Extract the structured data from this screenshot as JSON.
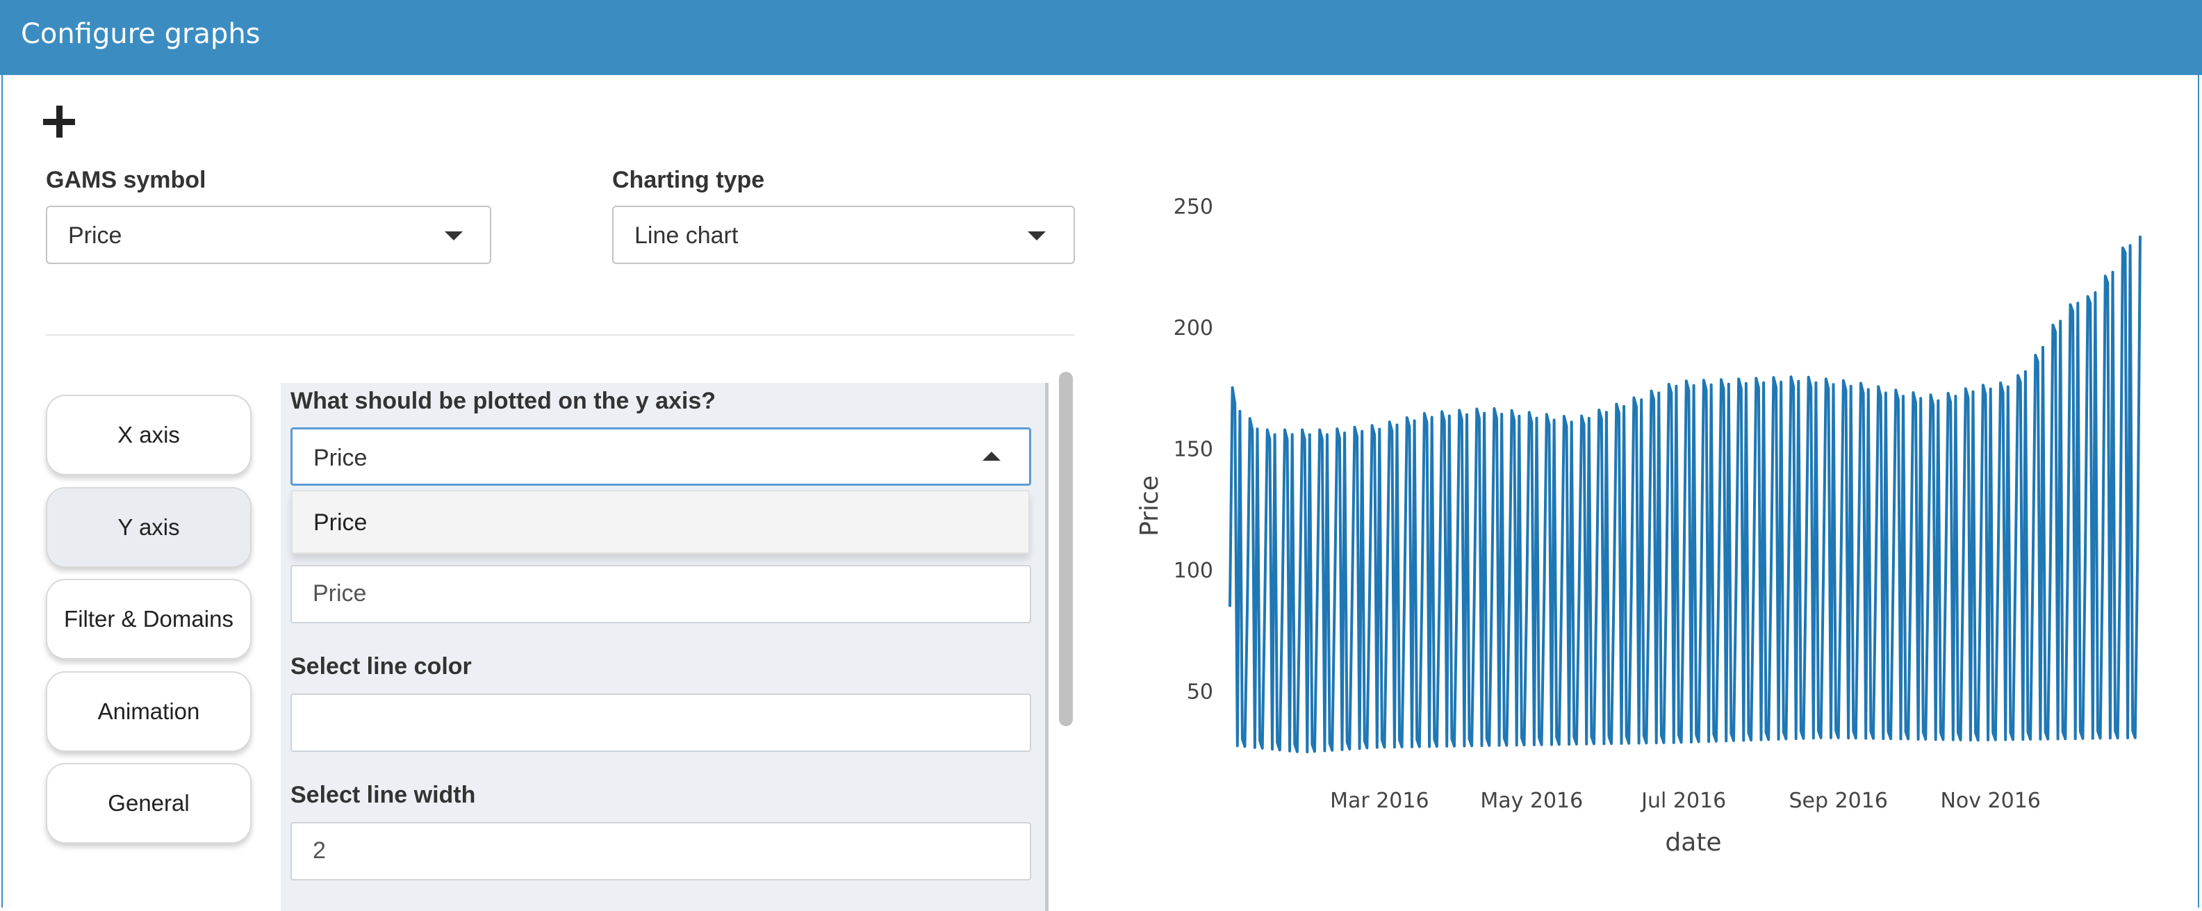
{
  "header": {
    "title": "Configure graphs"
  },
  "add_icon": "plus-icon",
  "symbol_field": {
    "label": "GAMS symbol",
    "value": "Price"
  },
  "charttype_field": {
    "label": "Charting type",
    "value": "Line chart"
  },
  "tabs": [
    {
      "label": "X axis",
      "active": false
    },
    {
      "label": "Y axis",
      "active": true
    },
    {
      "label": "Filter & Domains",
      "active": false
    },
    {
      "label": "Animation",
      "active": false
    },
    {
      "label": "General",
      "active": false
    }
  ],
  "yaxis_panel": {
    "question": "What should be plotted on the y axis?",
    "selected": "Price",
    "options": [
      "Price"
    ],
    "series_label_value": "Price",
    "line_color_label": "Select line color",
    "line_color_value": "",
    "line_width_label": "Select line width",
    "line_width_value": "2"
  },
  "chart_data": {
    "type": "line",
    "xlabel": "date",
    "ylabel": "Price",
    "x_range": [
      "2016-01-01",
      "2016-12-31"
    ],
    "ylim": [
      20,
      255
    ],
    "y_ticks": [
      50,
      100,
      150,
      200,
      250
    ],
    "x_ticks": [
      "Mar 2016",
      "May 2016",
      "Jul 2016",
      "Sep 2016",
      "Nov 2016"
    ],
    "x_tick_dates": [
      "2016-03-01",
      "2016-05-01",
      "2016-07-01",
      "2016-09-01",
      "2016-11-01"
    ],
    "color": "#1f77b4",
    "series": [
      {
        "approx_daily_pattern": "oscillating between low and high values",
        "high_envelope": [
          [
            1,
            178
          ],
          [
            6,
            165
          ],
          [
            15,
            158
          ],
          [
            40,
            158
          ],
          [
            60,
            160
          ],
          [
            80,
            165
          ],
          [
            105,
            167
          ],
          [
            140,
            163
          ],
          [
            160,
            170
          ],
          [
            180,
            178
          ],
          [
            230,
            180
          ],
          [
            250,
            178
          ],
          [
            270,
            174
          ],
          [
            285,
            172
          ],
          [
            300,
            176
          ],
          [
            315,
            178
          ],
          [
            325,
            190
          ],
          [
            330,
            200
          ],
          [
            340,
            212
          ],
          [
            345,
            213
          ],
          [
            355,
            225
          ],
          [
            360,
            235
          ],
          [
            366,
            238
          ]
        ],
        "low_envelope": [
          [
            1,
            28
          ],
          [
            30,
            25
          ],
          [
            60,
            27
          ],
          [
            120,
            28
          ],
          [
            180,
            29
          ],
          [
            240,
            31
          ],
          [
            300,
            30
          ],
          [
            366,
            31
          ]
        ],
        "mid_envelope": [
          [
            1,
            85
          ],
          [
            60,
            90
          ],
          [
            120,
            88
          ],
          [
            180,
            95
          ],
          [
            240,
            100
          ],
          [
            300,
            98
          ],
          [
            366,
            110
          ]
        ]
      }
    ]
  }
}
